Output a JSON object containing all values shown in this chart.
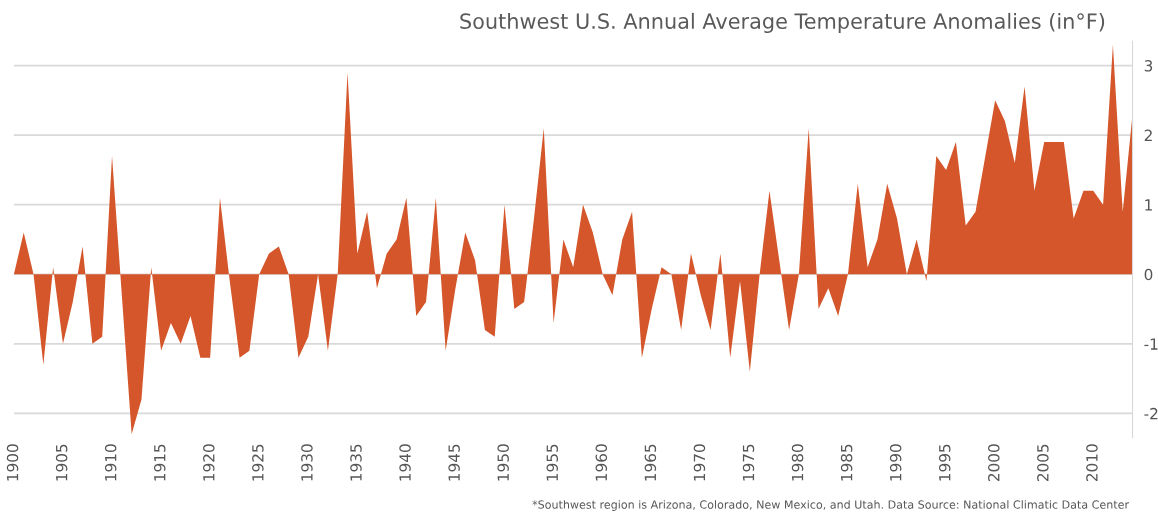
{
  "chart_data": {
    "type": "area",
    "title": "Southwest U.S. Annual Average Temperature Anomalies (in°F)",
    "x": [
      1900,
      1901,
      1902,
      1903,
      1904,
      1905,
      1906,
      1907,
      1908,
      1909,
      1910,
      1911,
      1912,
      1913,
      1914,
      1915,
      1916,
      1917,
      1918,
      1919,
      1920,
      1921,
      1922,
      1923,
      1924,
      1925,
      1926,
      1927,
      1928,
      1929,
      1930,
      1931,
      1932,
      1933,
      1934,
      1935,
      1936,
      1937,
      1938,
      1939,
      1940,
      1941,
      1942,
      1943,
      1944,
      1945,
      1946,
      1947,
      1948,
      1949,
      1950,
      1951,
      1952,
      1953,
      1954,
      1955,
      1956,
      1957,
      1958,
      1959,
      1960,
      1961,
      1962,
      1963,
      1964,
      1965,
      1966,
      1967,
      1968,
      1969,
      1970,
      1971,
      1972,
      1973,
      1974,
      1975,
      1976,
      1977,
      1978,
      1979,
      1980,
      1981,
      1982,
      1983,
      1984,
      1985,
      1986,
      1987,
      1988,
      1989,
      1990,
      1991,
      1992,
      1993,
      1994,
      1995,
      1996,
      1997,
      1998,
      1999,
      2000,
      2001,
      2002,
      2003,
      2004,
      2005,
      2006,
      2007,
      2008,
      2009,
      2010,
      2011,
      2012,
      2013,
      2014
    ],
    "series": [
      {
        "color": "#d4562a",
        "values": [
          0.0,
          0.6,
          0.0,
          -1.3,
          0.1,
          -1.0,
          -0.4,
          0.4,
          -1.0,
          -0.9,
          1.7,
          -0.3,
          -2.3,
          -1.8,
          0.1,
          -1.1,
          -0.7,
          -1.0,
          -0.6,
          -1.2,
          -1.2,
          1.1,
          -0.1,
          -1.2,
          -1.1,
          0.0,
          0.3,
          0.4,
          0.0,
          -1.2,
          -0.9,
          0.0,
          -1.1,
          0.0,
          2.9,
          0.3,
          0.9,
          -0.2,
          0.3,
          0.5,
          1.1,
          -0.6,
          -0.4,
          1.1,
          -1.1,
          -0.2,
          0.6,
          0.2,
          -0.8,
          -0.9,
          1.0,
          -0.5,
          -0.4,
          0.8,
          2.1,
          -0.7,
          0.5,
          0.1,
          1.0,
          0.6,
          0.0,
          -0.3,
          0.5,
          0.9,
          -1.2,
          -0.5,
          0.1,
          0.0,
          -0.8,
          0.3,
          -0.3,
          -0.8,
          0.3,
          -1.2,
          -0.1,
          -1.4,
          0.0,
          1.2,
          0.2,
          -0.8,
          0.0,
          2.1,
          -0.5,
          -0.2,
          -0.6,
          0.0,
          1.3,
          0.1,
          0.5,
          1.3,
          0.8,
          0.0,
          0.5,
          -0.1,
          1.7,
          1.5,
          1.9,
          0.7,
          0.9,
          1.7,
          2.5,
          2.2,
          1.6,
          2.7,
          1.2,
          1.9,
          1.9,
          1.9,
          0.8,
          1.2,
          1.2,
          1.0,
          3.3,
          0.9,
          2.3
        ]
      }
    ],
    "xlim": [
      1900,
      2014
    ],
    "xticks": [
      1900,
      1905,
      1910,
      1915,
      1920,
      1925,
      1930,
      1935,
      1940,
      1945,
      1950,
      1955,
      1960,
      1965,
      1970,
      1975,
      1980,
      1985,
      1990,
      1995,
      2000,
      2005,
      2010
    ],
    "ylim": [
      -2.35,
      3.35
    ],
    "yticks": [
      -2,
      -1,
      0,
      1,
      2,
      3
    ],
    "grid": "y",
    "annotations": [
      "*Southwest region is Arizona, Colorado, New Mexico, and Utah. Data Source: National Climatic Data Center"
    ]
  }
}
